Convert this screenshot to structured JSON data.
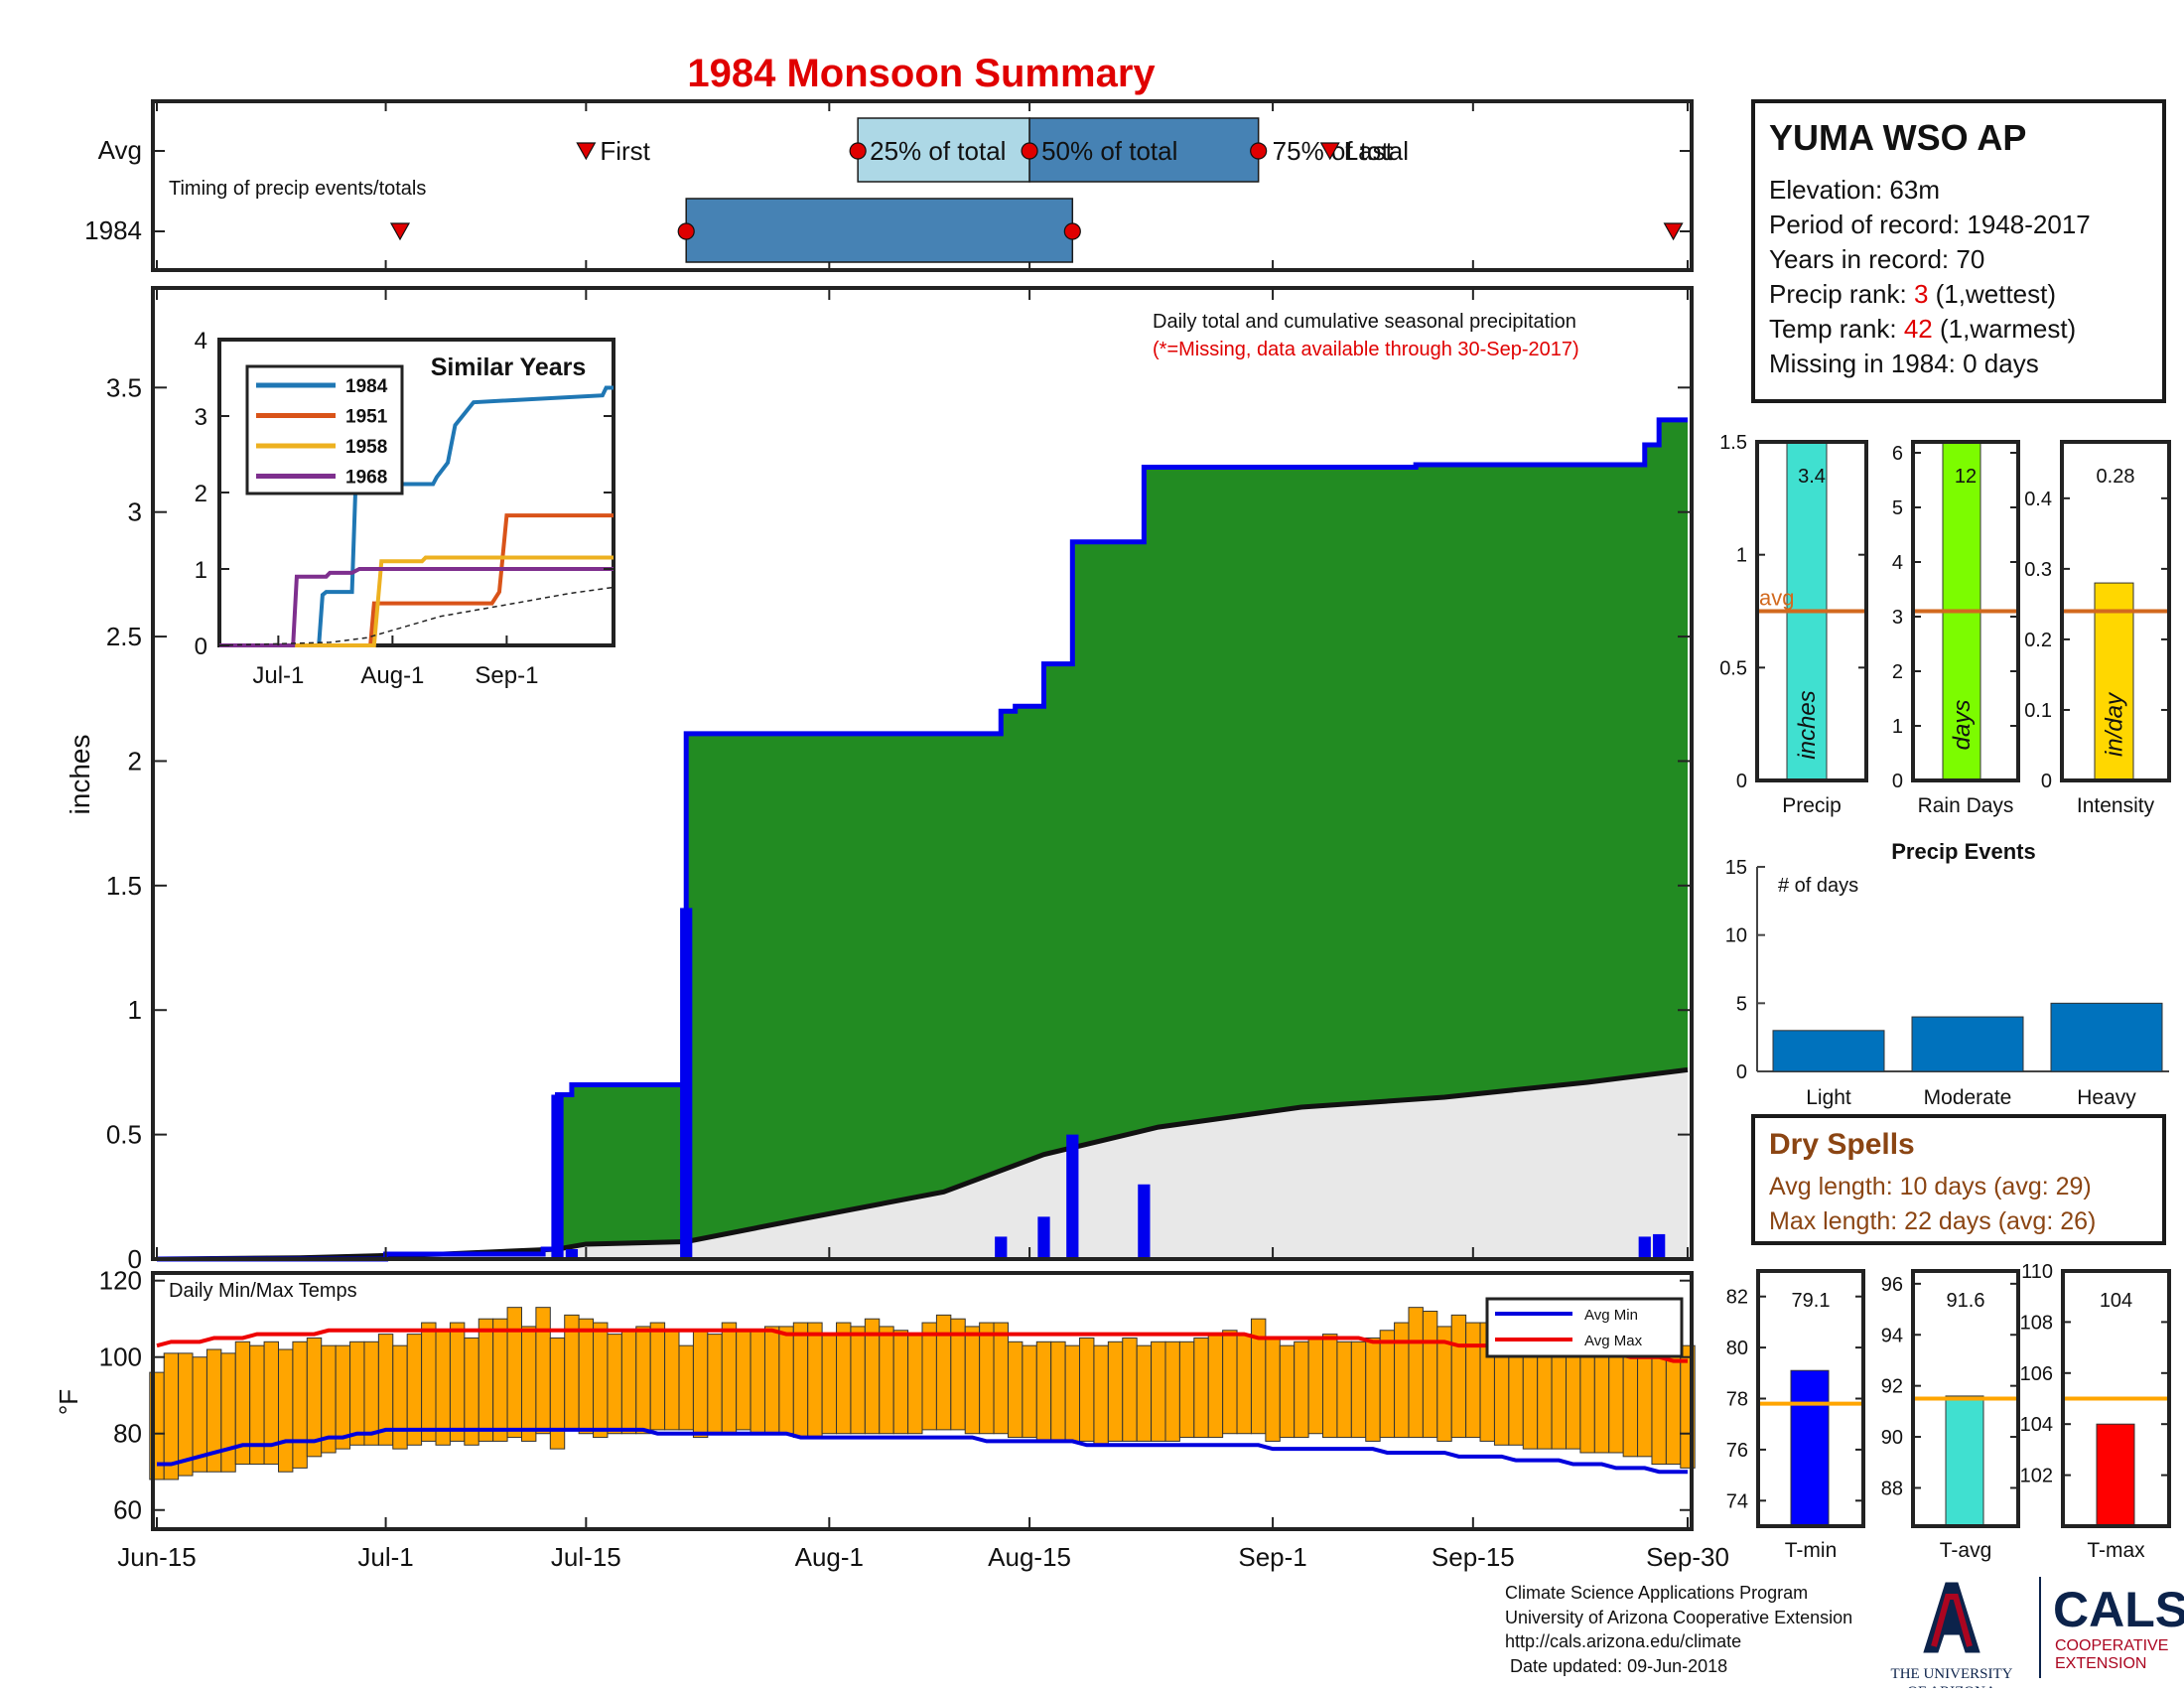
{
  "title": "1984 Monsoon Summary",
  "timing": {
    "row_labels": [
      "Avg",
      "1984"
    ],
    "caption": "Timing of precip events/totals",
    "avg_labels": {
      "first": "First",
      "p25": "25% of total",
      "p50": "50% of total",
      "p75": "75% of total",
      "last": "Last"
    },
    "avg_dates": {
      "first": "Jul-15",
      "p25": "Aug-3",
      "p50": "Aug-15",
      "p75": "Aug-31",
      "last": "Sep-5"
    },
    "year_dates": {
      "first": "Jul-2",
      "p25": "Jul-22",
      "p75": "Aug-18",
      "last": "Sep-29"
    }
  },
  "main": {
    "ylabel": "inches",
    "annotation": "Daily total and cumulative seasonal precipitation",
    "missing_note": "(*=Missing, data available through 30-Sep-2017)",
    "yticks": [
      "0",
      "0.5",
      "1",
      "1.5",
      "2",
      "2.5",
      "3",
      "3.5"
    ],
    "xticks": [
      "Jun-15",
      "Jul-1",
      "Jul-15",
      "Aug-1",
      "Aug-15",
      "Sep-1",
      "Sep-15",
      "Sep-30"
    ]
  },
  "inset": {
    "title": "Similar Years",
    "yticks": [
      "0",
      "1",
      "2",
      "3",
      "4"
    ],
    "xticks": [
      "Jul-1",
      "Aug-1",
      "Sep-1"
    ],
    "legend": [
      "1984",
      "1951",
      "1958",
      "1968"
    ]
  },
  "station": {
    "name": "YUMA WSO AP",
    "elevation": "Elevation: 63m",
    "period": "Period of record: 1948-2017",
    "years": "Years in record: 70",
    "precip_rank_label": "Precip rank: ",
    "precip_rank_value": "3",
    "precip_rank_note": " (1,wettest)",
    "temp_rank_label": "Temp rank: ",
    "temp_rank_value": "42",
    "temp_rank_note": " (1,warmest)",
    "missing": "Missing in 1984: 0 days"
  },
  "mini_precip": {
    "precip": {
      "xlabel": "Precip",
      "value_label": "3.4",
      "unit": "inches",
      "avg_label": "avg",
      "yticks": [
        "0",
        "0.5",
        "1",
        "1.5"
      ]
    },
    "raindays": {
      "xlabel": "Rain Days",
      "value_label": "12",
      "unit": "days",
      "yticks": [
        "0",
        "1",
        "2",
        "3",
        "4",
        "5",
        "6"
      ]
    },
    "intensity": {
      "xlabel": "Intensity",
      "value_label": "0.28",
      "unit": "in/day",
      "yticks": [
        "0",
        "0.1",
        "0.2",
        "0.3",
        "0.4"
      ]
    }
  },
  "events": {
    "title": "Precip Events",
    "ylabel": "# of days",
    "yticks": [
      "0",
      "5",
      "10",
      "15"
    ],
    "categories": [
      "Light",
      "Moderate",
      "Heavy"
    ]
  },
  "dry": {
    "title": "Dry Spells",
    "avg_length": "Avg length: 10 days (avg: 29)",
    "max_length": "Max length: 22 days (avg: 26)"
  },
  "temps": {
    "title": "Daily Min/Max Temps",
    "ylabel": "°F",
    "yticks": [
      "60",
      "80",
      "100",
      "120"
    ],
    "legend_min": "Avg Min",
    "legend max": "Avg Max",
    "legend_max": "Avg Max"
  },
  "mini_temp": {
    "tmin": {
      "xlabel": "T-min",
      "value_label": "79.1",
      "yticks": [
        "74",
        "76",
        "78",
        "80",
        "82"
      ]
    },
    "tavg": {
      "xlabel": "T-avg",
      "value_label": "91.6",
      "yticks": [
        "88",
        "90",
        "92",
        "94",
        "96"
      ]
    },
    "tmax": {
      "xlabel": "T-max",
      "value_label": "104",
      "yticks": [
        "102",
        "104",
        "106",
        "108",
        "110"
      ]
    }
  },
  "footer": {
    "line1": "Climate Science Applications Program",
    "line2": "University of Arizona Cooperative Extension",
    "line3": "http://cals.arizona.edu/climate",
    "line4": " Date updated: 09-Jun-2018"
  },
  "logos": {
    "ua_line1": "THE UNIVERSITY",
    "ua_line2": "OF ARIZONA",
    "cals": "CALS",
    "cals_sub1": "COOPERATIVE",
    "cals_sub2": "EXTENSION"
  },
  "colors": {
    "title": "#e00000",
    "cumulative_fill": "#228B22",
    "avg_fill": "#e8e8e8",
    "daily_bar": "#0000ee",
    "box_light": "#add8e6",
    "box_dark": "#4682b4",
    "temp_bar": "#ffa500",
    "avg_max": "#ee0000",
    "avg_min": "#0000dd",
    "avg_line": "#d2691e",
    "dry_text": "#8B4513"
  },
  "chart_data": [
    {
      "type": "bar",
      "name": "daily_and_cumulative_precip",
      "x_unit": "day of season (0 = Jun-15, 107 = Sep-30)",
      "ylim": [
        0,
        3.9
      ],
      "daily_precip": [
        {
          "date": "Jul-13",
          "day": 28,
          "value": 0.66
        },
        {
          "date": "Jul-14",
          "day": 29,
          "value": 0.04
        },
        {
          "date": "Jul-22",
          "day": 37,
          "value": 1.41
        },
        {
          "date": "Aug-13",
          "day": 59,
          "value": 0.09
        },
        {
          "date": "Aug-16",
          "day": 62,
          "value": 0.17
        },
        {
          "date": "Aug-18",
          "day": 64,
          "value": 0.5
        },
        {
          "date": "Aug-23",
          "day": 69,
          "value": 0.3
        },
        {
          "date": "Sep-27",
          "day": 104,
          "value": 0.09
        },
        {
          "date": "Sep-28",
          "day": 105,
          "value": 0.1
        }
      ],
      "cumulative_1984": [
        [
          0,
          0
        ],
        [
          16,
          0.02
        ],
        [
          27,
          0.04
        ],
        [
          28,
          0.66
        ],
        [
          29,
          0.7
        ],
        [
          37,
          2.11
        ],
        [
          59,
          2.2
        ],
        [
          60,
          2.22
        ],
        [
          62,
          2.39
        ],
        [
          64,
          2.88
        ],
        [
          69,
          3.18
        ],
        [
          85,
          3.18
        ],
        [
          88,
          3.19
        ],
        [
          104,
          3.27
        ],
        [
          105,
          3.37
        ],
        [
          107,
          3.37
        ]
      ],
      "cumulative_avg": [
        [
          0,
          0
        ],
        [
          10,
          0.005
        ],
        [
          20,
          0.02
        ],
        [
          28,
          0.04
        ],
        [
          30,
          0.06
        ],
        [
          37,
          0.07
        ],
        [
          45,
          0.16
        ],
        [
          55,
          0.27
        ],
        [
          62,
          0.42
        ],
        [
          70,
          0.53
        ],
        [
          80,
          0.61
        ],
        [
          90,
          0.65
        ],
        [
          100,
          0.71
        ],
        [
          107,
          0.76
        ]
      ]
    },
    {
      "type": "line",
      "name": "similar_years",
      "x_unit": "day since Jun-15",
      "ylim": [
        0,
        4
      ],
      "series": [
        {
          "name": "1984",
          "points": [
            [
              0,
              0
            ],
            [
              27,
              0
            ],
            [
              28,
              0.66
            ],
            [
              29,
              0.7
            ],
            [
              36,
              0.7
            ],
            [
              37,
              2.11
            ],
            [
              58,
              2.11
            ],
            [
              59,
              2.2
            ],
            [
              62,
              2.39
            ],
            [
              64,
              2.88
            ],
            [
              69,
              3.18
            ],
            [
              104,
              3.27
            ],
            [
              105,
              3.37
            ],
            [
              107,
              3.37
            ]
          ]
        },
        {
          "name": "1951",
          "points": [
            [
              0,
              0
            ],
            [
              41,
              0
            ],
            [
              42,
              0.55
            ],
            [
              74,
              0.55
            ],
            [
              76,
              0.7
            ],
            [
              78,
              1.7
            ],
            [
              107,
              1.7
            ]
          ]
        },
        {
          "name": "1958",
          "points": [
            [
              0,
              0
            ],
            [
              42,
              0
            ],
            [
              44,
              1.1
            ],
            [
              55,
              1.1
            ],
            [
              56,
              1.15
            ],
            [
              107,
              1.15
            ]
          ]
        },
        {
          "name": "1968",
          "points": [
            [
              0,
              0
            ],
            [
              20,
              0
            ],
            [
              21,
              0.9
            ],
            [
              29,
              0.9
            ],
            [
              30,
              0.95
            ],
            [
              36,
              0.95
            ],
            [
              38,
              1.0
            ],
            [
              107,
              1.0
            ]
          ]
        },
        {
          "points": [
            [
              0,
              0
            ],
            [
              30,
              0.04
            ],
            [
              40,
              0.1
            ],
            [
              60,
              0.38
            ],
            [
              80,
              0.55
            ],
            [
              95,
              0.68
            ],
            [
              107,
              0.76
            ]
          ]
        }
      ]
    },
    {
      "type": "bar",
      "name": "seasonal_totals",
      "categories": [
        "Precip",
        "Rain Days",
        "Intensity"
      ],
      "values": [
        3.4,
        12,
        0.28
      ],
      "averages": [
        0.75,
        3.1,
        0.24
      ]
    },
    {
      "type": "bar",
      "name": "precip_events",
      "categories": [
        "Light",
        "Moderate",
        "Heavy"
      ],
      "values": [
        3,
        4,
        5
      ],
      "ylim": [
        0,
        15
      ]
    },
    {
      "type": "bar",
      "name": "daily_temps",
      "x_unit": "day of season (0 = Jun-15)",
      "ylim": [
        55,
        122
      ],
      "tmin": [
        68,
        68,
        69,
        70,
        70,
        70,
        72,
        72,
        72,
        70,
        71,
        74,
        75,
        76,
        77,
        77,
        77,
        76,
        77,
        78,
        77,
        78,
        77,
        78,
        78,
        79,
        78,
        80,
        76,
        81,
        80,
        79,
        80,
        80,
        80,
        81,
        81,
        81,
        79,
        80,
        80,
        81,
        80,
        80,
        80,
        79,
        79,
        80,
        80,
        80,
        80,
        80,
        80,
        80,
        81,
        81,
        81,
        80,
        80,
        80,
        79,
        79,
        78,
        78,
        78,
        78,
        77,
        78,
        78,
        78,
        78,
        78,
        79,
        79,
        79,
        80,
        80,
        80,
        78,
        79,
        79,
        80,
        79,
        79,
        79,
        78,
        79,
        79,
        79,
        79,
        78,
        79,
        79,
        78,
        77,
        77,
        76,
        76,
        76,
        76,
        75,
        75,
        75,
        74,
        74,
        72,
        72,
        71
      ],
      "tmax": [
        96,
        101,
        101,
        100,
        102,
        101,
        104,
        103,
        104,
        102,
        104,
        105,
        103,
        103,
        104,
        104,
        106,
        103,
        106,
        109,
        107,
        109,
        105,
        110,
        110,
        113,
        108,
        113,
        105,
        111,
        110,
        109,
        106,
        107,
        108,
        109,
        107,
        103,
        107,
        106,
        109,
        107,
        107,
        108,
        108,
        109,
        109,
        106,
        109,
        108,
        110,
        108,
        107,
        106,
        109,
        111,
        110,
        108,
        109,
        109,
        104,
        103,
        104,
        104,
        103,
        105,
        103,
        104,
        105,
        103,
        104,
        104,
        104,
        105,
        106,
        107,
        106,
        110,
        105,
        103,
        104,
        105,
        106,
        104,
        104,
        105,
        107,
        109,
        113,
        112,
        108,
        111,
        109,
        109,
        110,
        111,
        112,
        106,
        109,
        110,
        110,
        109,
        108,
        108,
        103,
        106,
        103,
        103
      ],
      "avg_min": [
        72,
        72,
        73,
        74,
        75,
        76,
        77,
        77,
        77,
        78,
        78,
        78,
        79,
        79,
        80,
        80,
        81,
        81,
        81,
        81,
        81,
        81,
        81,
        81,
        81,
        81,
        81,
        81,
        81,
        81,
        81,
        81,
        81,
        81,
        81,
        80,
        80,
        80,
        80,
        80,
        80,
        80,
        80,
        80,
        80,
        79,
        79,
        79,
        79,
        79,
        79,
        79,
        79,
        79,
        79,
        79,
        79,
        79,
        78,
        78,
        78,
        78,
        78,
        78,
        78,
        77,
        77,
        77,
        77,
        77,
        77,
        77,
        77,
        77,
        77,
        77,
        77,
        77,
        76,
        76,
        76,
        76,
        76,
        76,
        76,
        76,
        75,
        75,
        75,
        75,
        75,
        74,
        74,
        74,
        74,
        73,
        73,
        73,
        73,
        72,
        72,
        72,
        71,
        71,
        71,
        70,
        70,
        70
      ],
      "avg_max": [
        103,
        104,
        104,
        104,
        105,
        105,
        105,
        106,
        106,
        106,
        106,
        106,
        107,
        107,
        107,
        107,
        107,
        107,
        107,
        107,
        107,
        107,
        107,
        107,
        107,
        107,
        107,
        107,
        107,
        107,
        107,
        107,
        107,
        107,
        107,
        107,
        107,
        107,
        107,
        107,
        107,
        107,
        107,
        107,
        106,
        106,
        106,
        106,
        106,
        106,
        106,
        106,
        106,
        106,
        106,
        106,
        106,
        106,
        106,
        106,
        106,
        106,
        106,
        106,
        106,
        106,
        106,
        106,
        106,
        106,
        106,
        106,
        106,
        106,
        106,
        106,
        106,
        105,
        105,
        105,
        105,
        105,
        105,
        105,
        105,
        104,
        104,
        104,
        104,
        104,
        104,
        103,
        103,
        103,
        103,
        102,
        102,
        102,
        102,
        101,
        101,
        101,
        101,
        100,
        100,
        100,
        99,
        99
      ]
    },
    {
      "type": "bar",
      "name": "seasonal_temps",
      "categories": [
        "T-min",
        "T-avg",
        "T-max"
      ],
      "values": [
        79.1,
        91.6,
        104
      ],
      "averages": [
        77.8,
        91.5,
        105
      ],
      "ylims": [
        [
          73,
          83
        ],
        [
          86.5,
          96.5
        ],
        [
          100,
          110
        ]
      ]
    }
  ]
}
